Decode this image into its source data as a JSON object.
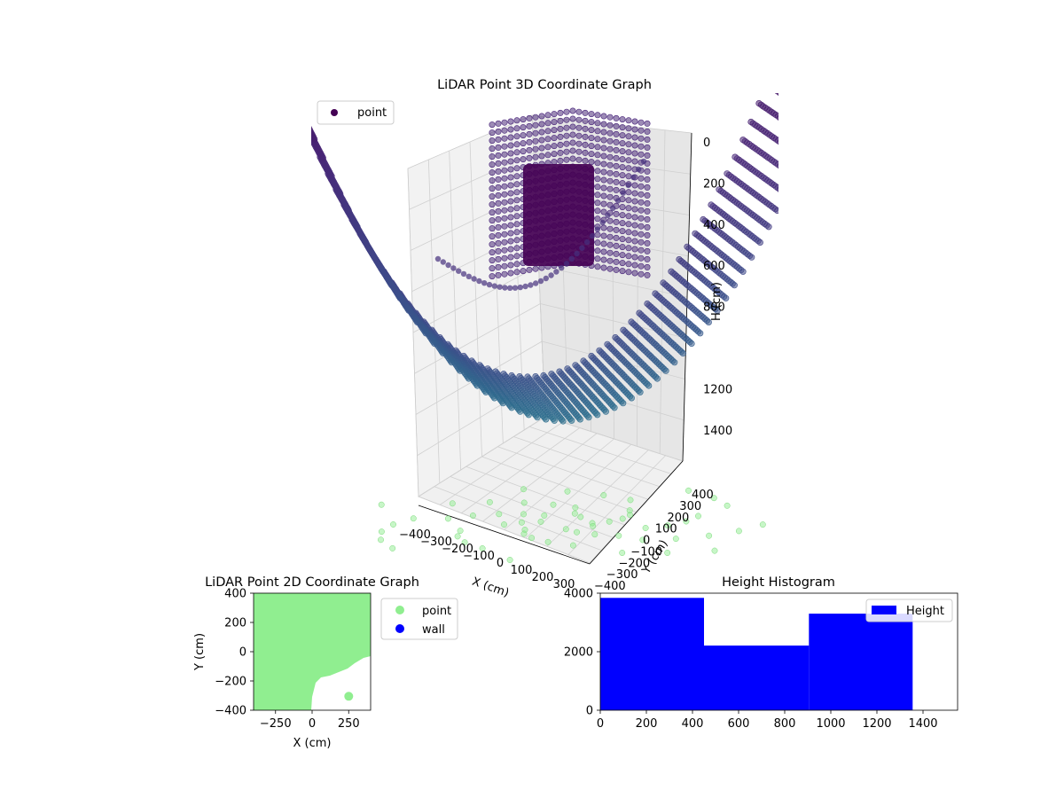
{
  "chart_data": [
    {
      "type": "scatter3d",
      "title": "LiDAR Point 3D Coordinate Graph",
      "xlabel": "X (cm)",
      "ylabel": "Y (cm)",
      "zlabel": "H (cm)",
      "x_ticks": [
        -400,
        -300,
        -200,
        -100,
        0,
        100,
        200,
        300
      ],
      "y_ticks": [
        -400,
        -300,
        -200,
        -100,
        0,
        100,
        200,
        300,
        400
      ],
      "z_ticks": [
        0,
        200,
        400,
        600,
        800,
        1200,
        1400
      ],
      "z_inverted": true,
      "colormap": "viridis",
      "grid": true,
      "legend": {
        "position": "top-left",
        "entries": [
          {
            "label": "point",
            "color": "#440154"
          }
        ]
      },
      "series": [
        {
          "name": "point",
          "color": "#440154"
        }
      ],
      "shadow_color": "#90ee90"
    },
    {
      "type": "scatter",
      "title": "LiDAR Point 2D Coordinate Graph",
      "xlabel": "X (cm)",
      "ylabel": "Y (cm)",
      "xlim": [
        -400,
        400
      ],
      "ylim": [
        -400,
        400
      ],
      "x_ticks": [
        -250,
        0,
        250
      ],
      "y_ticks": [
        -400,
        -200,
        0,
        200,
        400
      ],
      "legend": {
        "position": "outside-right",
        "entries": [
          {
            "label": "point",
            "color": "#90ee90"
          },
          {
            "label": "wall",
            "color": "#0000ff"
          }
        ]
      },
      "series": [
        {
          "name": "point",
          "color": "#90ee90"
        },
        {
          "name": "wall",
          "color": "#0000ff",
          "x": [
            250
          ],
          "y": [
            -305
          ]
        }
      ]
    },
    {
      "type": "histogram",
      "title": "Height Histogram",
      "xlim": [
        0,
        1550
      ],
      "ylim": [
        0,
        4000
      ],
      "x_ticks": [
        0,
        200,
        400,
        600,
        800,
        1000,
        1200,
        1400
      ],
      "y_ticks": [
        0,
        2000,
        4000
      ],
      "color": "#0000ff",
      "legend": {
        "position": "top-right",
        "entries": [
          {
            "label": "Height",
            "color": "#0000ff"
          }
        ]
      },
      "bins": [
        {
          "start": 0,
          "end": 450,
          "count": 3840
        },
        {
          "start": 450,
          "end": 905,
          "count": 2210
        },
        {
          "start": 905,
          "end": 1355,
          "count": 3300
        }
      ]
    }
  ]
}
